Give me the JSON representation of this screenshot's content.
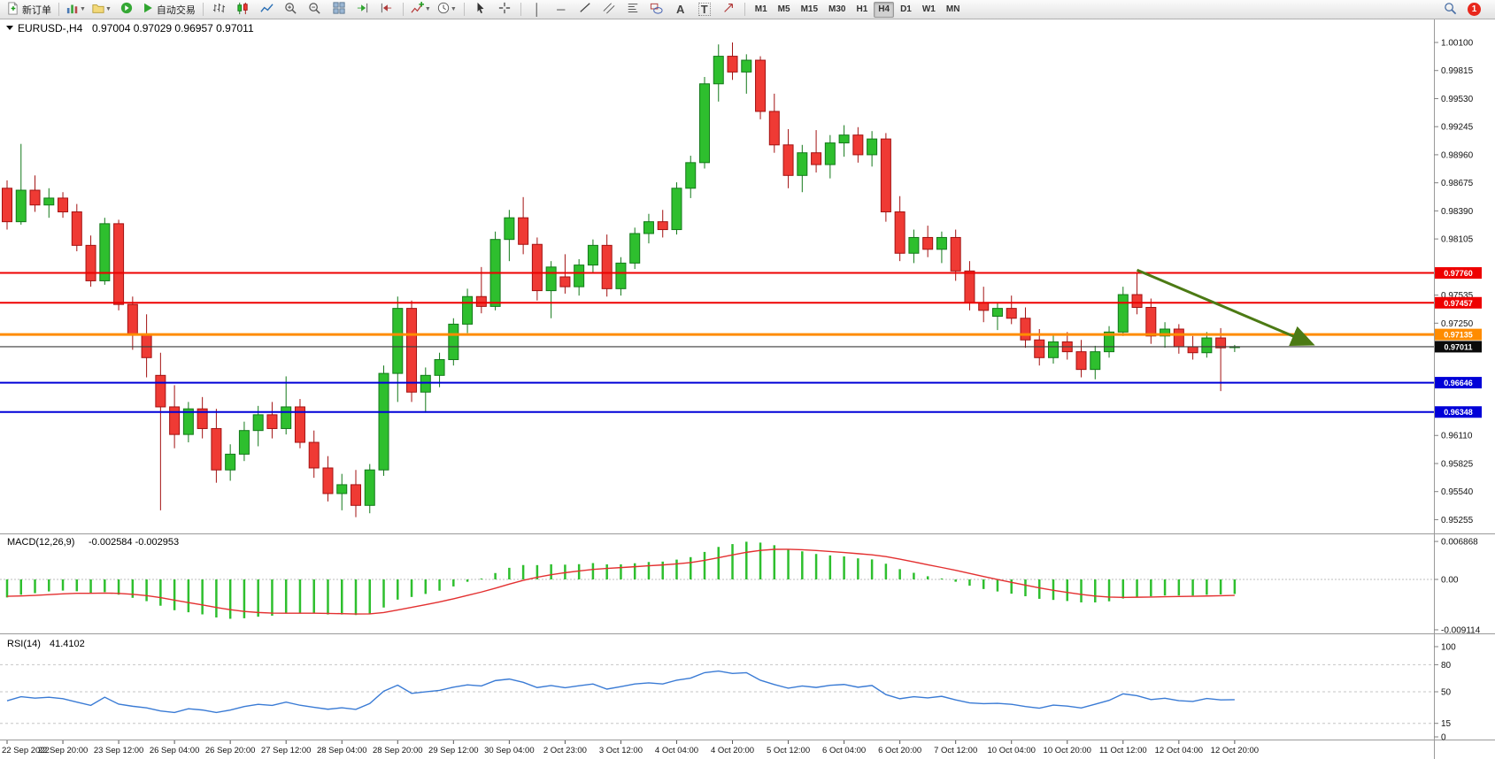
{
  "toolbar": {
    "new_order_label": "新订单",
    "autotrading_label": "自动交易",
    "text_tool_label": "A",
    "label_tool_label": "T",
    "timeframes": [
      "M1",
      "M5",
      "M15",
      "M30",
      "H1",
      "H4",
      "D1",
      "W1",
      "MN"
    ],
    "active_timeframe": "H4",
    "notification_count": "1"
  },
  "chart_data": {
    "main": {
      "type": "candlestick",
      "title": "EURUSD-,H4",
      "ohlc": "0.97004 0.97029 0.96957 0.97011",
      "current": {
        "open": 0.97004,
        "high": 0.97029,
        "low": 0.96957,
        "close": 0.97011
      },
      "price_labels": [
        1.001,
        0.99815,
        0.9953,
        0.99245,
        0.9896,
        0.98675,
        0.9839,
        0.98105,
        0.97535,
        0.9725,
        0.9611,
        0.95825,
        0.9554,
        0.95255
      ],
      "colors": {
        "bull_fill": "#2ebf2e",
        "bull_stroke": "#13791a",
        "bear_fill": "#ef3a34",
        "bear_stroke": "#a31212"
      },
      "hlines": [
        {
          "price": 0.9776,
          "color": "#ee0000",
          "width": 2
        },
        {
          "price": 0.97457,
          "color": "#ee0000",
          "width": 2
        },
        {
          "price": 0.97135,
          "color": "#ff8c00",
          "width": 3
        },
        {
          "price": 0.97011,
          "color": "#3a3a3a",
          "width": 1.2,
          "tag_bg": "#0a0a0a"
        },
        {
          "price": 0.96646,
          "color": "#0000d8",
          "width": 2
        },
        {
          "price": 0.96348,
          "color": "#0000d8",
          "width": 2
        }
      ],
      "arrow": {
        "from_bar": 81,
        "from_price": 0.9779,
        "to_bar": 93.5,
        "to_price": 0.9704,
        "color": "#4c7a14"
      },
      "x_labels": [
        "22 Sep 2022",
        "22 Sep 20:00",
        "23 Sep 12:00",
        "26 Sep 04:00",
        "26 Sep 20:00",
        "27 Sep 12:00",
        "28 Sep 04:00",
        "28 Sep 20:00",
        "29 Sep 12:00",
        "30 Sep 04:00",
        "2 Oct 23:00",
        "3 Oct 12:00",
        "4 Oct 04:00",
        "4 Oct 20:00",
        "5 Oct 12:00",
        "6 Oct 04:00",
        "6 Oct 20:00",
        "7 Oct 12:00",
        "10 Oct 04:00",
        "10 Oct 20:00",
        "11 Oct 12:00",
        "12 Oct 04:00",
        "12 Oct 20:00"
      ],
      "bars_per_label": 4,
      "candles": [
        [
          0.9862,
          0.987,
          0.982,
          0.9828
        ],
        [
          0.9828,
          0.9907,
          0.9825,
          0.986
        ],
        [
          0.986,
          0.9875,
          0.9838,
          0.9845
        ],
        [
          0.9845,
          0.9862,
          0.9832,
          0.9852
        ],
        [
          0.9852,
          0.9858,
          0.9832,
          0.9838
        ],
        [
          0.9838,
          0.9846,
          0.9798,
          0.9804
        ],
        [
          0.9804,
          0.9814,
          0.9762,
          0.9768
        ],
        [
          0.9768,
          0.9832,
          0.9764,
          0.9826
        ],
        [
          0.9826,
          0.983,
          0.9738,
          0.9744
        ],
        [
          0.9744,
          0.9752,
          0.9698,
          0.9714
        ],
        [
          0.9714,
          0.9734,
          0.967,
          0.969
        ],
        [
          0.9672,
          0.9695,
          0.9535,
          0.964
        ],
        [
          0.964,
          0.9662,
          0.9598,
          0.9612
        ],
        [
          0.9612,
          0.9645,
          0.9604,
          0.9638
        ],
        [
          0.9638,
          0.965,
          0.9608,
          0.9618
        ],
        [
          0.9618,
          0.9638,
          0.9563,
          0.9576
        ],
        [
          0.9576,
          0.9602,
          0.9565,
          0.9592
        ],
        [
          0.9592,
          0.9625,
          0.9585,
          0.9616
        ],
        [
          0.9616,
          0.9641,
          0.96,
          0.9632
        ],
        [
          0.9632,
          0.9645,
          0.9608,
          0.9618
        ],
        [
          0.9618,
          0.9671,
          0.9612,
          0.964
        ],
        [
          0.964,
          0.9648,
          0.9598,
          0.9604
        ],
        [
          0.9604,
          0.9616,
          0.9568,
          0.9578
        ],
        [
          0.9578,
          0.959,
          0.9544,
          0.9552
        ],
        [
          0.9552,
          0.9572,
          0.9535,
          0.9561
        ],
        [
          0.9561,
          0.9576,
          0.9528,
          0.954
        ],
        [
          0.954,
          0.9582,
          0.9532,
          0.9576
        ],
        [
          0.9576,
          0.9682,
          0.957,
          0.9674
        ],
        [
          0.9674,
          0.9752,
          0.9645,
          0.974
        ],
        [
          0.974,
          0.9748,
          0.9645,
          0.9655
        ],
        [
          0.9655,
          0.968,
          0.9634,
          0.9672
        ],
        [
          0.9672,
          0.9695,
          0.966,
          0.9688
        ],
        [
          0.9688,
          0.973,
          0.9682,
          0.9724
        ],
        [
          0.9724,
          0.976,
          0.9715,
          0.9752
        ],
        [
          0.9752,
          0.9782,
          0.9735,
          0.9742
        ],
        [
          0.9742,
          0.9818,
          0.9738,
          0.981
        ],
        [
          0.981,
          0.984,
          0.9788,
          0.9832
        ],
        [
          0.9832,
          0.9853,
          0.9795,
          0.9805
        ],
        [
          0.9805,
          0.9812,
          0.9748,
          0.9758
        ],
        [
          0.9758,
          0.9788,
          0.973,
          0.9782
        ],
        [
          0.9772,
          0.9795,
          0.9755,
          0.9762
        ],
        [
          0.9762,
          0.979,
          0.9753,
          0.9784
        ],
        [
          0.9784,
          0.981,
          0.9776,
          0.9804
        ],
        [
          0.9804,
          0.9815,
          0.9752,
          0.976
        ],
        [
          0.976,
          0.9792,
          0.9753,
          0.9786
        ],
        [
          0.9786,
          0.9822,
          0.978,
          0.9816
        ],
        [
          0.9816,
          0.9836,
          0.9806,
          0.9828
        ],
        [
          0.9828,
          0.984,
          0.9812,
          0.982
        ],
        [
          0.982,
          0.9868,
          0.9815,
          0.9862
        ],
        [
          0.9862,
          0.9895,
          0.9852,
          0.9888
        ],
        [
          0.9888,
          0.9975,
          0.9882,
          0.9968
        ],
        [
          0.9968,
          1.0008,
          0.995,
          0.9996
        ],
        [
          0.9996,
          1.001,
          0.9972,
          0.998
        ],
        [
          0.998,
          0.9998,
          0.9958,
          0.9992
        ],
        [
          0.9992,
          0.9996,
          0.9932,
          0.994
        ],
        [
          0.994,
          0.9958,
          0.9898,
          0.9906
        ],
        [
          0.9906,
          0.9922,
          0.9862,
          0.9875
        ],
        [
          0.9875,
          0.9906,
          0.9858,
          0.9898
        ],
        [
          0.9898,
          0.9921,
          0.9878,
          0.9886
        ],
        [
          0.9886,
          0.9916,
          0.9872,
          0.9908
        ],
        [
          0.9908,
          0.9926,
          0.9894,
          0.9916
        ],
        [
          0.9916,
          0.9924,
          0.9888,
          0.9896
        ],
        [
          0.9896,
          0.992,
          0.9884,
          0.9912
        ],
        [
          0.9912,
          0.9918,
          0.9828,
          0.9838
        ],
        [
          0.9838,
          0.9854,
          0.9788,
          0.9796
        ],
        [
          0.9796,
          0.982,
          0.9786,
          0.9812
        ],
        [
          0.9812,
          0.9824,
          0.9792,
          0.98
        ],
        [
          0.98,
          0.9818,
          0.9786,
          0.9812
        ],
        [
          0.9812,
          0.982,
          0.9768,
          0.9778
        ],
        [
          0.9778,
          0.9788,
          0.9738,
          0.9746
        ],
        [
          0.9746,
          0.9762,
          0.9726,
          0.9738
        ],
        [
          0.9732,
          0.9746,
          0.9718,
          0.974
        ],
        [
          0.974,
          0.9753,
          0.9724,
          0.973
        ],
        [
          0.973,
          0.9741,
          0.97,
          0.9708
        ],
        [
          0.9708,
          0.9719,
          0.9682,
          0.969
        ],
        [
          0.969,
          0.9713,
          0.9684,
          0.9706
        ],
        [
          0.9706,
          0.9716,
          0.9688,
          0.9696
        ],
        [
          0.9696,
          0.9708,
          0.967,
          0.9678
        ],
        [
          0.9678,
          0.9702,
          0.9668,
          0.9696
        ],
        [
          0.9696,
          0.9722,
          0.969,
          0.9716
        ],
        [
          0.9716,
          0.9762,
          0.9712,
          0.9754
        ],
        [
          0.9754,
          0.9776,
          0.9734,
          0.9741
        ],
        [
          0.9741,
          0.975,
          0.9704,
          0.9712
        ],
        [
          0.9712,
          0.9726,
          0.97,
          0.9719
        ],
        [
          0.9719,
          0.9724,
          0.9694,
          0.9701
        ],
        [
          0.9701,
          0.9712,
          0.9688,
          0.9695
        ],
        [
          0.9695,
          0.9716,
          0.969,
          0.971
        ],
        [
          0.971,
          0.972,
          0.9656,
          0.97
        ],
        [
          0.97004,
          0.97029,
          0.96957,
          0.97011
        ]
      ]
    },
    "macd": {
      "type": "macd",
      "label": "MACD(12,26,9)",
      "values": "-0.002584 -0.002953",
      "params": {
        "fast": 12,
        "slow": 26,
        "signal": 9
      },
      "histogram_color": "#2ebf2e",
      "signal_color": "#e33030",
      "axis": [
        {
          "value": 0.006868,
          "text": "0.006868"
        },
        {
          "value": 0,
          "text": "0.00"
        },
        {
          "value": -0.009114,
          "text": "-0.009114"
        }
      ],
      "seed": {
        "ema12": 0.983,
        "ema26": 0.9865,
        "signal": -0.003
      }
    },
    "rsi": {
      "type": "rsi",
      "label": "RSI(14)",
      "value": "41.4102",
      "period": 14,
      "line_color": "#3a7bd5",
      "levels": [
        80,
        50,
        15
      ],
      "axis": [
        100,
        80,
        50,
        15,
        0
      ],
      "seed": {
        "avg_gain": 0.0012,
        "avg_loss": 0.0018
      }
    }
  }
}
